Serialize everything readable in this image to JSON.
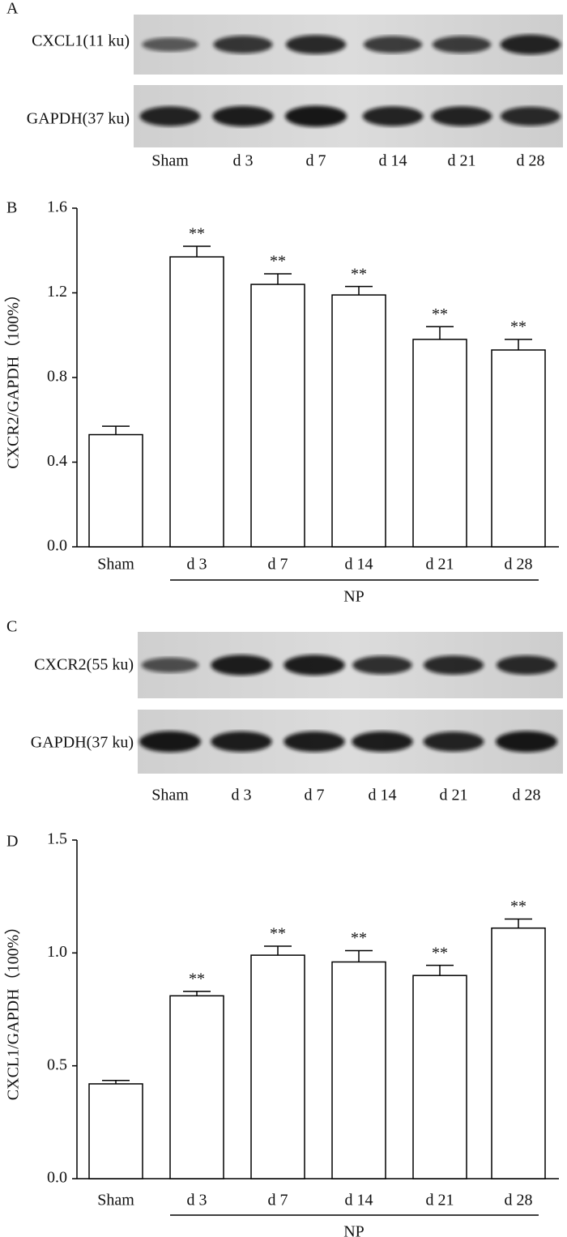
{
  "blots": [
    {
      "panel_label": "A",
      "rows": [
        "CXCL1(11 ku)",
        "GAPDH(37 ku)"
      ],
      "lanes": [
        "Sham",
        "d 3",
        "d 7",
        "d 14",
        "d 21",
        "d 28"
      ]
    },
    {
      "panel_label": "C",
      "rows": [
        "CXCR2(55 ku)",
        "GAPDH(37 ku)"
      ],
      "lanes": [
        "Sham",
        "d 3",
        "d 7",
        "d 14",
        "d 21",
        "d 28"
      ]
    }
  ],
  "chart_data": [
    {
      "type": "bar",
      "panel_label": "B",
      "y_label": "CXCR2/GAPDH（100%）",
      "categories": [
        "Sham",
        "d 3",
        "d 7",
        "d 14",
        "d 21",
        "d 28"
      ],
      "values": [
        0.53,
        1.37,
        1.24,
        1.19,
        0.98,
        0.93
      ],
      "errors": [
        0.04,
        0.05,
        0.05,
        0.04,
        0.06,
        0.05
      ],
      "annotations": [
        null,
        "**",
        "**",
        "**",
        "**",
        "**"
      ],
      "group_label": "NP",
      "color": "#ffffff",
      "ylim": [
        0,
        1.6
      ],
      "yticks": [
        {
          "value": 0,
          "label": "0.0"
        },
        0.4,
        0.8,
        1.2,
        1.6
      ]
    },
    {
      "type": "bar",
      "panel_label": "D",
      "y_label": "CXCL1/GAPDH（100%）",
      "categories": [
        "Sham",
        "d 3",
        "d 7",
        "d 14",
        "d 21",
        "d 28"
      ],
      "values": [
        0.42,
        0.81,
        0.99,
        0.96,
        0.9,
        1.11
      ],
      "errors": [
        0.015,
        0.02,
        0.04,
        0.05,
        0.045,
        0.04
      ],
      "annotations": [
        null,
        "**",
        "**",
        "**",
        "**",
        "**"
      ],
      "group_label": "NP",
      "color": "#ffffff",
      "ylim": [
        0,
        1.5
      ],
      "yticks": [
        {
          "value": 0,
          "label": "0.0"
        },
        0.5,
        {
          "value": 1,
          "label": "1.0"
        },
        1.5
      ]
    }
  ]
}
